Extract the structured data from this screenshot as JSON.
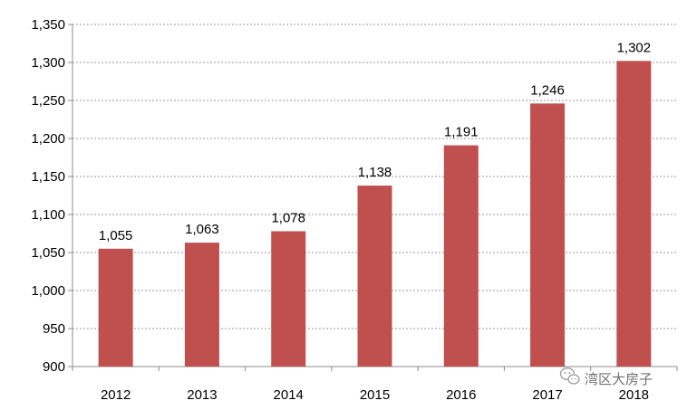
{
  "chart_data": {
    "type": "bar",
    "categories": [
      "2012",
      "2013",
      "2014",
      "2015",
      "2016",
      "2017",
      "2018"
    ],
    "values": [
      1055,
      1063,
      1078,
      1138,
      1191,
      1246,
      1302
    ],
    "data_labels": [
      "1,055",
      "1,063",
      "1,078",
      "1,138",
      "1,191",
      "1,246",
      "1,302"
    ],
    "y_ticks": [
      900,
      950,
      1000,
      1050,
      1100,
      1150,
      1200,
      1250,
      1300,
      1350
    ],
    "y_tick_labels": [
      "900",
      "950",
      "1,000",
      "1,050",
      "1,100",
      "1,150",
      "1,200",
      "1,250",
      "1,300",
      "1,350"
    ],
    "ylim": [
      900,
      1350
    ],
    "title": "",
    "xlabel": "",
    "ylabel": "",
    "grid": true,
    "grid_style": "dashed",
    "bar_color": "#C0504D"
  },
  "watermark": {
    "text": "湾区大房子",
    "icon": "wechat-icon"
  }
}
